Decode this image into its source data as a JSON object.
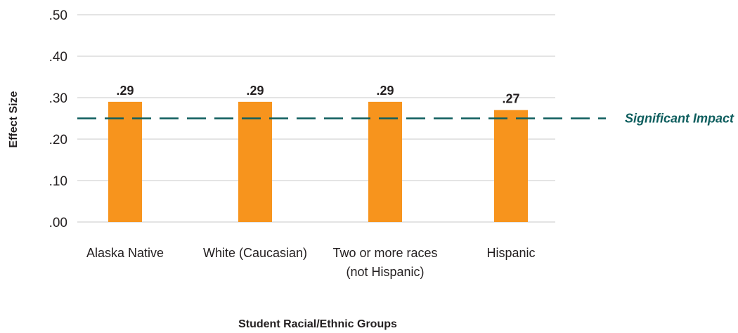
{
  "chart_data": {
    "type": "bar",
    "categories": [
      "Alaska Native",
      "White (Caucasian)",
      "Two or more races\n(not Hispanic)",
      "Hispanic"
    ],
    "values": [
      0.29,
      0.29,
      0.29,
      0.27
    ],
    "data_labels": [
      ".29",
      ".29",
      ".29",
      ".27"
    ],
    "ylabel": "Effect Size",
    "xlabel": "Student Racial/Ethnic Groups",
    "ylim": [
      0,
      0.5
    ],
    "yticks": [
      0,
      0.1,
      0.2,
      0.3,
      0.4,
      0.5
    ],
    "ytick_labels": [
      ".00",
      ".10",
      ".20",
      ".30",
      ".40",
      ".50"
    ],
    "grid": true,
    "reference_line": {
      "value": 0.25,
      "label": "Significant Impact",
      "color": "#0e5e5e"
    },
    "bar_color": "#f7941d"
  }
}
